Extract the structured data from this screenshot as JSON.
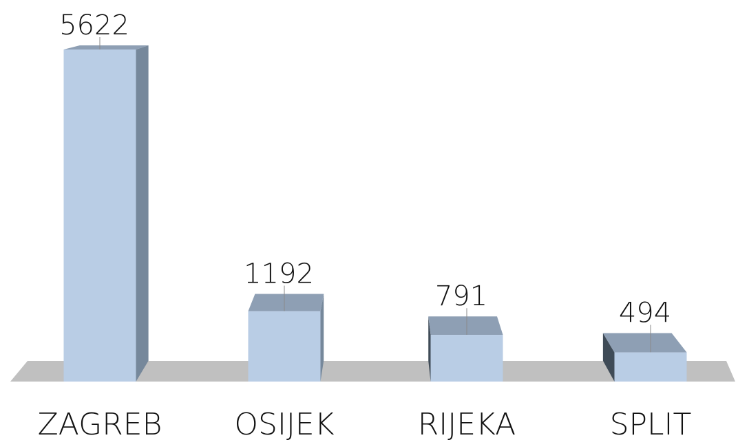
{
  "chart_data": {
    "type": "bar",
    "categories": [
      "ZAGREB",
      "OSIJEK",
      "RIJEKA",
      "SPLIT"
    ],
    "values": [
      5622,
      1192,
      791,
      494
    ],
    "color": "#b9cde5"
  }
}
